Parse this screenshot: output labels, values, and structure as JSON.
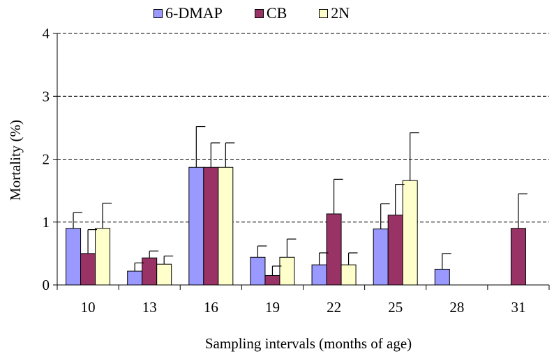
{
  "chart_data": {
    "type": "bar",
    "title": "",
    "xlabel": "Sampling intervals (months of age)",
    "ylabel": "Mortality (%)",
    "ylim": [
      0,
      4
    ],
    "yticks": [
      "0",
      "1",
      "2",
      "3",
      "4"
    ],
    "grid": "horizontal dashed",
    "legend_position": "top",
    "categories": [
      "10",
      "13",
      "16",
      "19",
      "22",
      "25",
      "28",
      "31"
    ],
    "series": [
      {
        "name": "6-DMAP",
        "color": "#9999ff",
        "values": [
          0.9,
          0.22,
          1.87,
          0.44,
          0.32,
          0.89,
          0.25,
          0
        ],
        "error": [
          0.25,
          0.13,
          0.65,
          0.18,
          0.19,
          0.4,
          0.25,
          0
        ]
      },
      {
        "name": "CB",
        "color": "#993366",
        "values": [
          0.5,
          0.43,
          1.87,
          0.15,
          1.13,
          1.11,
          0,
          0.9
        ],
        "error": [
          0.38,
          0.11,
          0.39,
          0.15,
          0.55,
          0.49,
          0,
          0.55
        ]
      },
      {
        "name": "2N",
        "color": "#ffffcc",
        "values": [
          0.9,
          0.33,
          1.87,
          0.44,
          0.32,
          1.66,
          0,
          0
        ],
        "error": [
          0.4,
          0.13,
          0.39,
          0.29,
          0.19,
          0.76,
          0,
          0
        ]
      }
    ]
  }
}
